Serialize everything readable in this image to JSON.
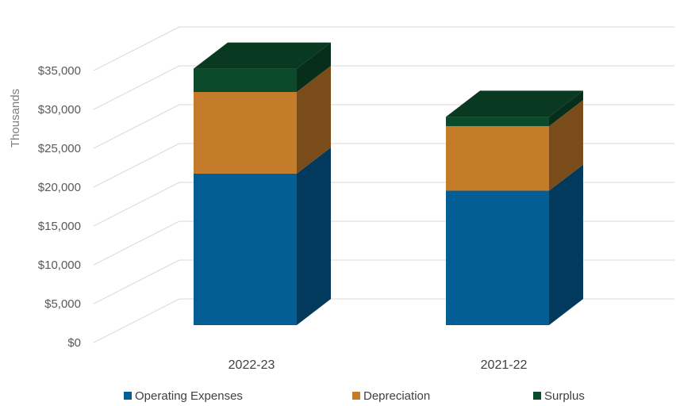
{
  "chart_data": {
    "type": "bar",
    "stacked": true,
    "style": "3d",
    "ylabel": "Thousands",
    "categories": [
      "2022-23",
      "2021-22"
    ],
    "y_ticks": [
      "$0",
      "$5,000",
      "$10,000",
      "$15,000",
      "$20,000",
      "$25,000",
      "$30,000",
      "$35,000"
    ],
    "ylim": [
      0,
      35000
    ],
    "grid": true,
    "legend_position": "bottom",
    "series": [
      {
        "name": "Operating Expenses",
        "values": [
          19500,
          17300
        ],
        "color": "#025E95"
      },
      {
        "name": "Depreciation",
        "values": [
          10500,
          8300
        ],
        "color": "#C47B2A"
      },
      {
        "name": "Surplus",
        "values": [
          3000,
          1200
        ],
        "color": "#0B4A2A"
      }
    ]
  }
}
